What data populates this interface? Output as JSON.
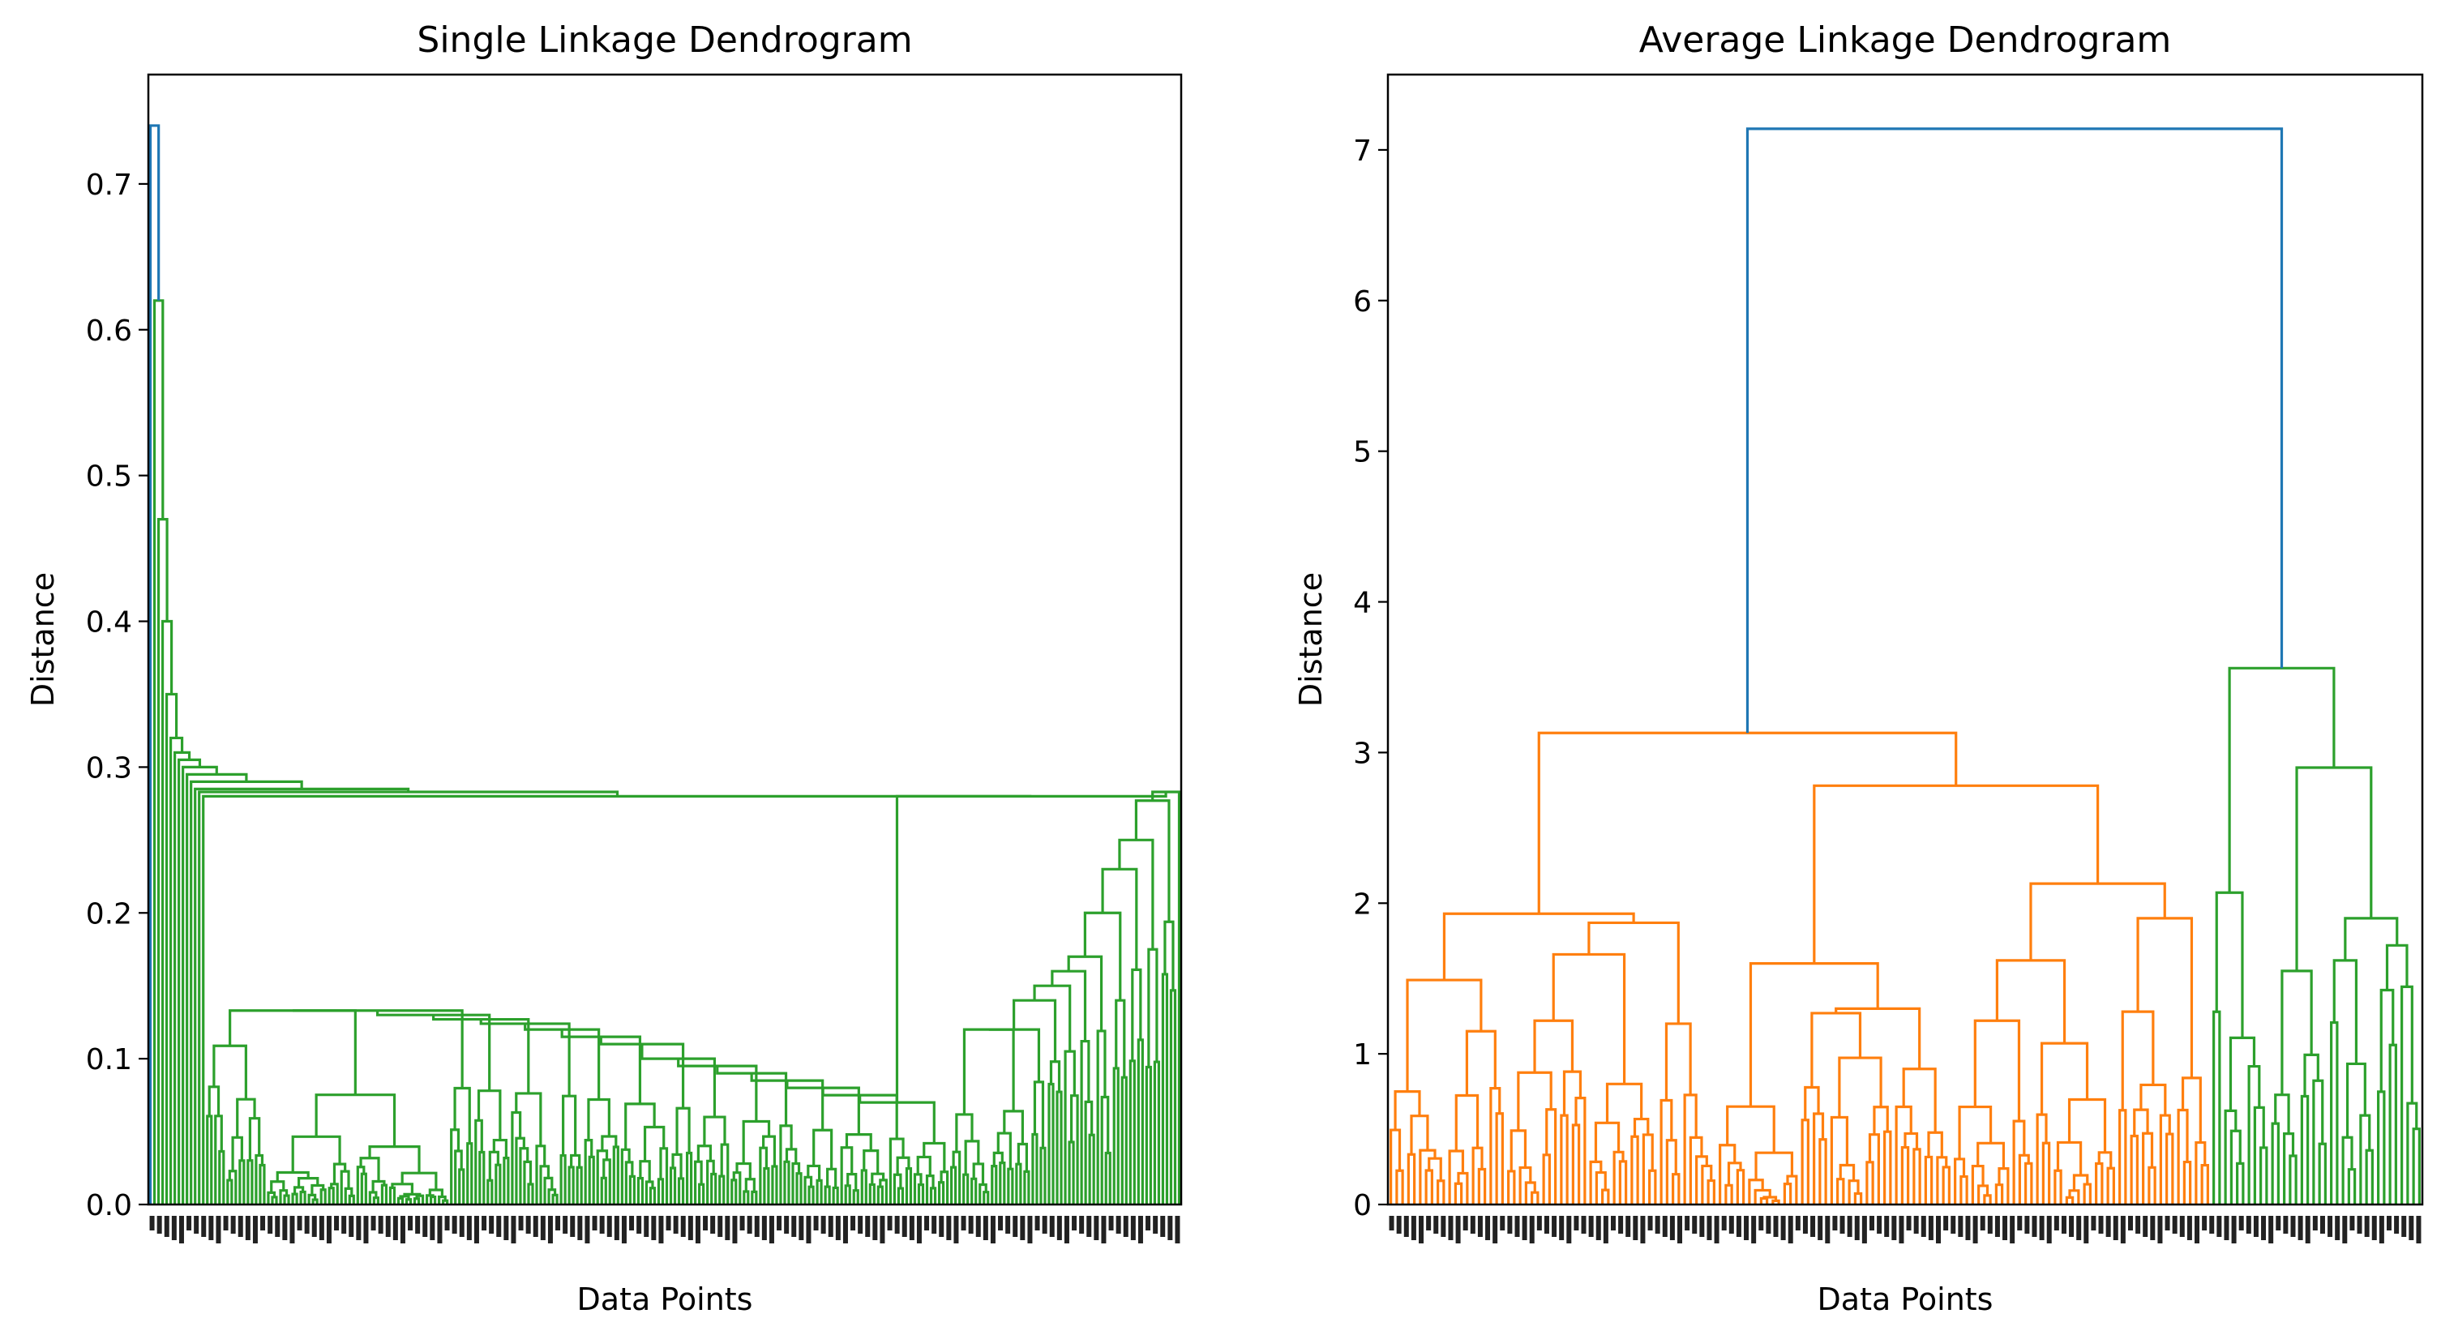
{
  "chart_data": [
    {
      "type": "dendrogram",
      "title": "Single Linkage Dendrogram",
      "xlabel": "Data Points",
      "ylabel": "Distance",
      "ylim": [
        0,
        0.775
      ],
      "yticks": [
        0.0,
        0.1,
        0.2,
        0.3,
        0.4,
        0.5,
        0.6,
        0.7
      ],
      "ytick_labels": [
        "0.0",
        "0.1",
        "0.2",
        "0.3",
        "0.4",
        "0.5",
        "0.6",
        "0.7"
      ],
      "colors": {
        "root": "#1f77b4",
        "cluster": "#2ca02c"
      },
      "root_height": 0.74,
      "main_merge_heights": [
        0.74,
        0.62,
        0.47,
        0.4,
        0.35,
        0.32,
        0.31,
        0.305,
        0.3,
        0.295,
        0.29,
        0.285,
        0.283,
        0.28
      ],
      "plateau_heights": [
        0.133,
        0.13,
        0.127,
        0.124,
        0.12,
        0.115,
        0.11,
        0.1,
        0.095,
        0.09,
        0.085,
        0.08,
        0.075,
        0.07
      ],
      "right_group_heights": [
        0.283,
        0.277,
        0.25,
        0.23,
        0.2,
        0.17,
        0.16,
        0.15,
        0.14,
        0.12
      ]
    },
    {
      "type": "dendrogram",
      "title": "Average Linkage Dendrogram",
      "xlabel": "Data Points",
      "ylabel": "Distance",
      "ylim": [
        0,
        7.5
      ],
      "yticks": [
        0,
        1,
        2,
        3,
        4,
        5,
        6,
        7
      ],
      "ytick_labels": [
        "0",
        "1",
        "2",
        "3",
        "4",
        "5",
        "6",
        "7"
      ],
      "colors": {
        "root": "#1f77b4",
        "cluster_1": "#ff7f0e",
        "cluster_2": "#2ca02c"
      },
      "merges": [
        {
          "height": 7.14,
          "color": "#1f77b4"
        },
        {
          "height": 3.13,
          "color": "#ff7f0e"
        },
        {
          "height": 3.56,
          "color": "#2ca02c"
        },
        {
          "height": 2.9,
          "color": "#2ca02c"
        },
        {
          "height": 2.78,
          "color": "#ff7f0e"
        },
        {
          "height": 2.13,
          "color": "#ff7f0e"
        },
        {
          "height": 1.93,
          "color": "#ff7f0e"
        },
        {
          "height": 1.9,
          "color": "#2ca02c"
        },
        {
          "height": 1.87,
          "color": "#ff7f0e"
        },
        {
          "height": 1.66,
          "color": "#ff7f0e"
        },
        {
          "height": 1.62,
          "color": "#ff7f0e"
        },
        {
          "height": 1.6,
          "color": "#ff7f0e"
        },
        {
          "height": 1.49,
          "color": "#ff7f0e"
        },
        {
          "height": 1.3,
          "color": "#ff7f0e"
        },
        {
          "height": 1.22,
          "color": "#ff7f0e"
        }
      ]
    }
  ]
}
